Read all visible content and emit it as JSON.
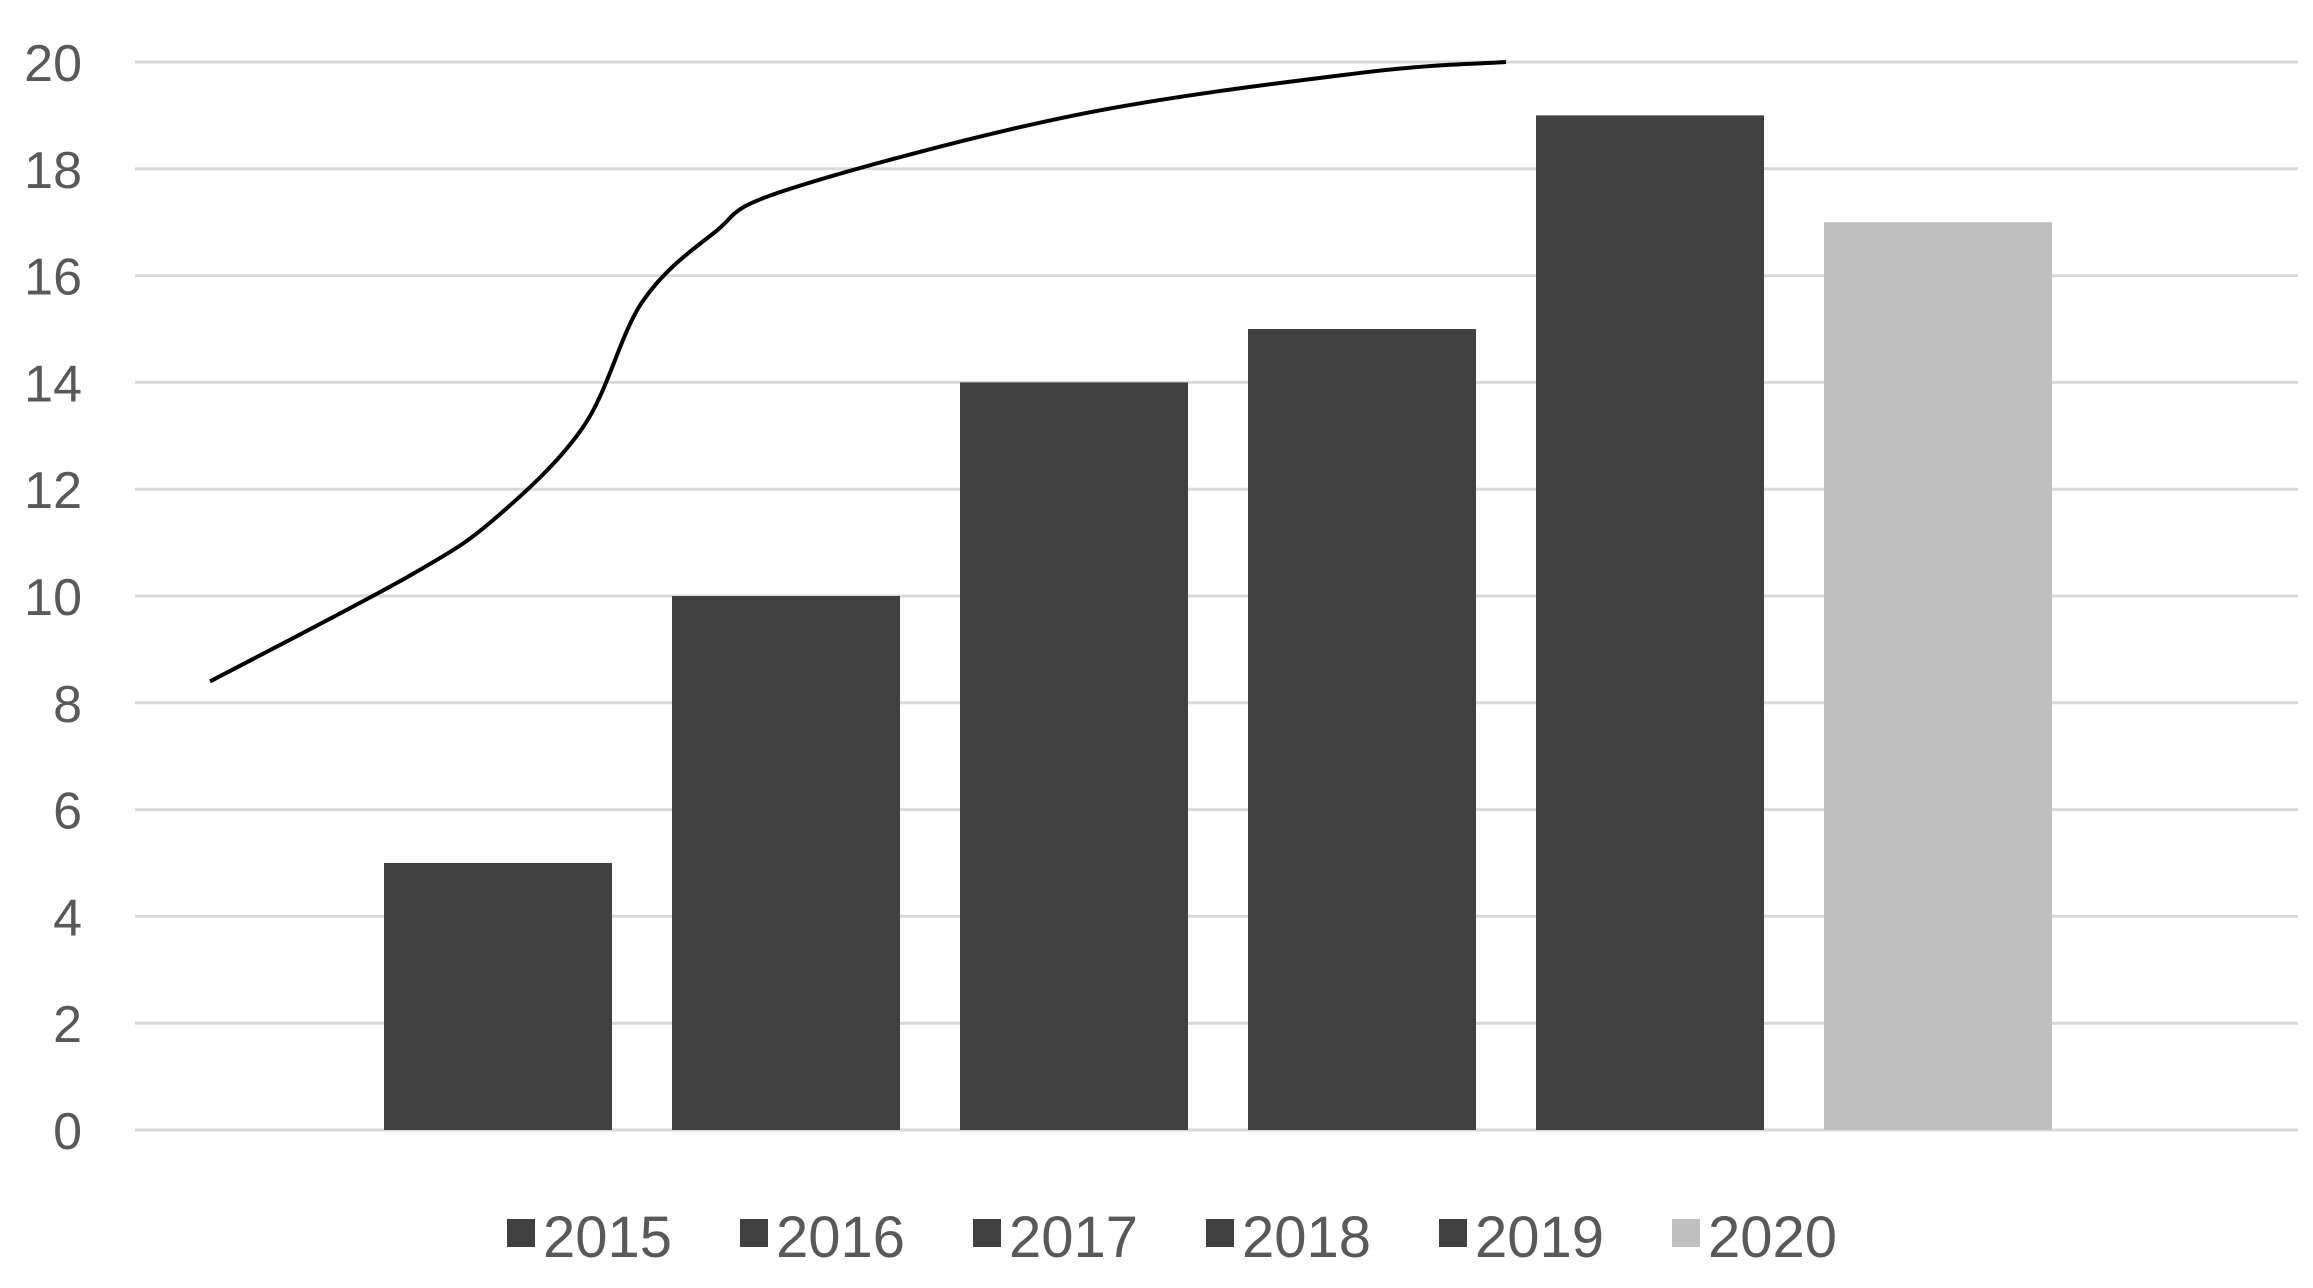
{
  "chart_data": {
    "type": "bar",
    "categories": [
      "2015",
      "2016",
      "2017",
      "2018",
      "2019",
      "2020"
    ],
    "values": [
      5,
      10,
      14,
      15,
      19,
      17
    ],
    "bar_colors": [
      "#404040",
      "#404040",
      "#404040",
      "#404040",
      "#404040",
      "#bfbfbf"
    ],
    "title": "",
    "xlabel": "",
    "ylabel": "",
    "ylim": [
      0,
      20
    ],
    "yticks": [
      0,
      2,
      4,
      6,
      8,
      10,
      12,
      14,
      16,
      18,
      20
    ],
    "grid": true,
    "legend": {
      "placement": "bottom",
      "entries": [
        {
          "label": "2015",
          "color": "#404040"
        },
        {
          "label": "2016",
          "color": "#404040"
        },
        {
          "label": "2017",
          "color": "#404040"
        },
        {
          "label": "2018",
          "color": "#404040"
        },
        {
          "label": "2019",
          "color": "#404040"
        },
        {
          "label": "2020",
          "color": "#bfbfbf"
        }
      ]
    },
    "trend_line": {
      "type": "line",
      "color": "#000000",
      "x": [
        0.0,
        0.7,
        1.0,
        1.3,
        1.5,
        1.75,
        2.0,
        3.0,
        4.0,
        4.5
      ],
      "y": [
        8.4,
        10.4,
        11.5,
        13.2,
        15.5,
        16.8,
        17.6,
        19.0,
        19.8,
        20.0
      ]
    }
  }
}
